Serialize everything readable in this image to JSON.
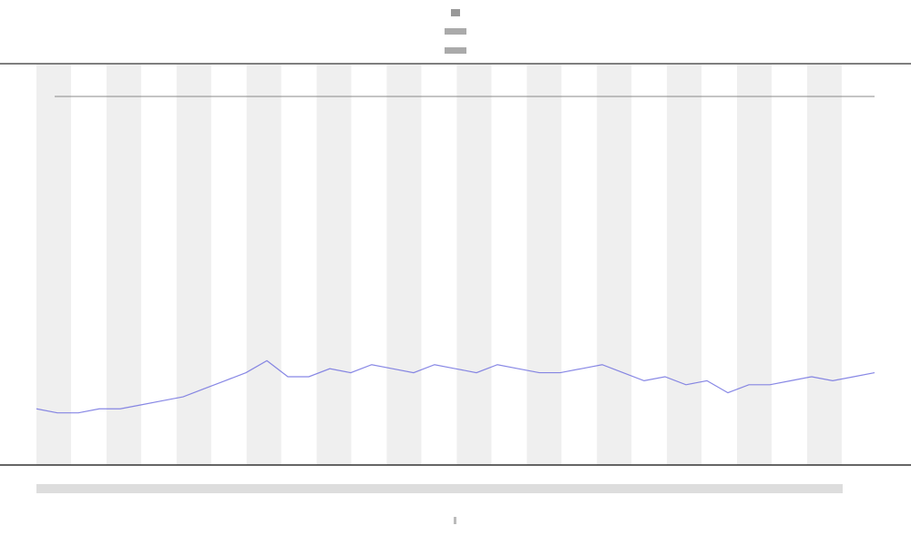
{
  "chart_data": {
    "type": "line",
    "x": [
      0,
      1,
      2,
      3,
      4,
      5,
      6,
      7,
      8,
      9,
      10,
      11,
      12,
      13,
      14,
      15,
      16,
      17,
      18,
      19,
      20,
      21,
      22,
      23,
      24,
      25,
      26,
      27,
      28,
      29,
      30,
      31,
      32,
      33,
      34,
      35,
      36,
      37,
      38,
      39,
      40
    ],
    "values": [
      14,
      13,
      13,
      14,
      14,
      15,
      16,
      17,
      19,
      21,
      23,
      26,
      22,
      22,
      24,
      23,
      25,
      24,
      23,
      25,
      24,
      23,
      25,
      24,
      23,
      23,
      24,
      25,
      23,
      21,
      22,
      20,
      21,
      18,
      20,
      20,
      21,
      22,
      21,
      22,
      23
    ],
    "color": "#6a6adf",
    "xlim": [
      0,
      40
    ],
    "ylim": [
      0,
      100
    ]
  }
}
